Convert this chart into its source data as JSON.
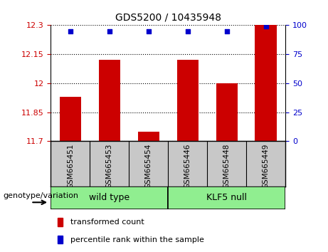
{
  "title": "GDS5200 / 10435948",
  "samples": [
    "GSM665451",
    "GSM665453",
    "GSM665454",
    "GSM665446",
    "GSM665448",
    "GSM665449"
  ],
  "transformed_counts": [
    11.93,
    12.12,
    11.75,
    12.12,
    12.0,
    12.3
  ],
  "percentile_ranks": [
    95,
    95,
    95,
    95,
    95,
    99
  ],
  "groups": [
    {
      "label": "wild type",
      "start": 0,
      "end": 3,
      "color": "#90EE90"
    },
    {
      "label": "KLF5 null",
      "start": 3,
      "end": 6,
      "color": "#90EE90"
    }
  ],
  "ylim_left": [
    11.7,
    12.3
  ],
  "ylim_right": [
    0,
    100
  ],
  "yticks_left": [
    11.7,
    11.85,
    12.0,
    12.15,
    12.3
  ],
  "yticks_right": [
    0,
    25,
    50,
    75,
    100
  ],
  "bar_color": "#CC0000",
  "dot_color": "#0000CC",
  "bar_width": 0.55,
  "title_fontsize": 10,
  "tick_fontsize": 8,
  "label_fontsize": 8,
  "genotype_label": "genotype/variation",
  "legend_transformed": "transformed count",
  "legend_percentile": "percentile rank within the sample",
  "left_tick_color": "#CC0000",
  "right_tick_color": "#0000CC",
  "xlabel_bg_color": "#C8C8C8",
  "xlabel_border_color": "#000000"
}
